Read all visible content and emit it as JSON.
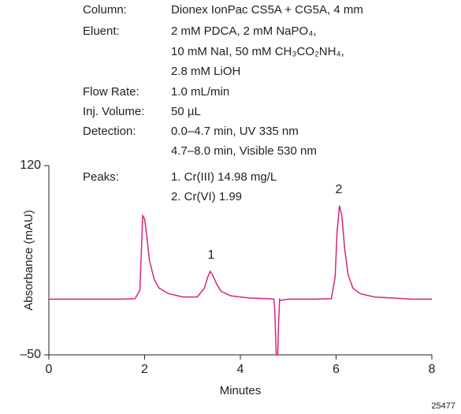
{
  "chart_data": {
    "type": "line",
    "method": [
      {
        "label": "Column:",
        "lines": [
          "Dionex IonPac CS5A + CG5A, 4 mm"
        ]
      },
      {
        "label": "Eluent:",
        "lines": [
          "2 mM PDCA, 2 mM NaPO₄,",
          "10 mM NaI, 50 mM CH₃CO₂NH₄,",
          "2.8 mM LiOH"
        ]
      },
      {
        "label": "Flow Rate:",
        "lines": [
          "1.0 mL/min"
        ]
      },
      {
        "label": "Inj. Volume:",
        "lines": [
          "50 µL"
        ]
      },
      {
        "label": "Detection:",
        "lines": [
          "0.0–4.7 min, UV 335 nm",
          "4.7–8.0 min, Visible 530 nm"
        ]
      },
      {
        "label": "Peaks:",
        "lines": [
          "1. Cr(III)  14.98 mg/L",
          "2. Cr(VI)    1.99"
        ]
      }
    ],
    "x_label": "Minutes",
    "y_label": "Absorbance (mAU)",
    "figure_id": "25477",
    "annotations": [
      "1",
      "2"
    ],
    "xlim": [
      0,
      8
    ],
    "ylim": [
      -50,
      120
    ],
    "xticks": [
      0,
      2,
      4,
      6,
      8
    ],
    "yticks": [
      {
        "value": -50,
        "label": "–50"
      },
      120
    ],
    "series": [
      {
        "color": "#d6247e",
        "x": [
          0,
          0.5,
          1,
          1.5,
          1.8,
          1.9,
          1.93,
          1.96,
          2.0,
          2.05,
          2.1,
          2.2,
          2.3,
          2.5,
          2.8,
          3.1,
          3.25,
          3.32,
          3.37,
          3.42,
          3.5,
          3.6,
          3.8,
          4.2,
          4.6,
          4.7,
          4.72,
          4.75,
          4.78,
          4.8,
          4.82,
          4.85,
          5.0,
          5.5,
          5.9,
          5.98,
          6.02,
          6.07,
          6.12,
          6.18,
          6.25,
          6.35,
          6.5,
          6.8,
          7.2,
          7.6,
          8.0
        ],
        "values": [
          0,
          0,
          0,
          0,
          0.5,
          8,
          40,
          75,
          72,
          55,
          35,
          18,
          10,
          5,
          2,
          2,
          10,
          20,
          25,
          22,
          14,
          7,
          3,
          1,
          0.5,
          0,
          -10,
          -50,
          -50,
          -20,
          0,
          -1,
          0,
          0,
          0.5,
          20,
          60,
          84,
          75,
          45,
          22,
          10,
          5,
          2,
          1,
          0,
          0
        ]
      }
    ]
  }
}
